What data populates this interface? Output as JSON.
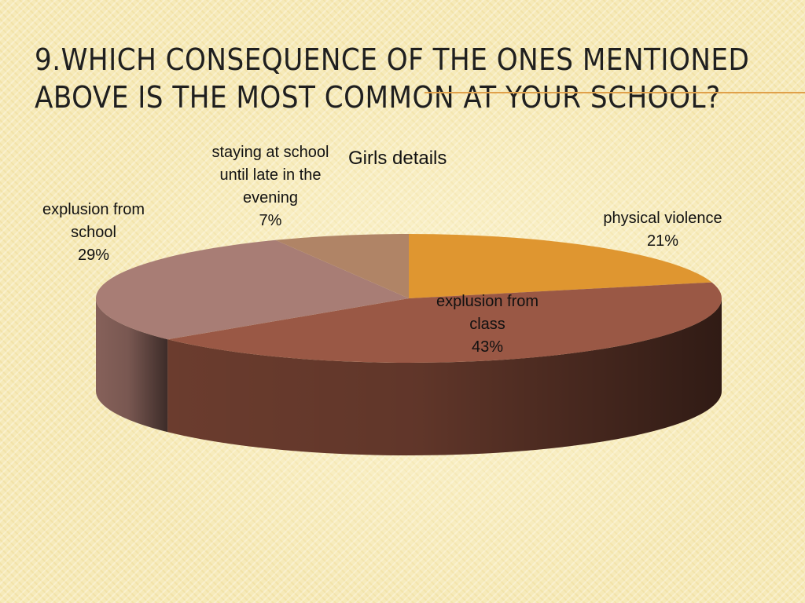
{
  "slide": {
    "title": "9.which consequence of the ones mentioned above is the most common at your school?"
  },
  "chart_data": {
    "type": "pie",
    "title": "Girls details",
    "three_d": true,
    "start_angle_deg": 0,
    "slices": [
      {
        "label_lines": [
          "physical violence"
        ],
        "value": 21,
        "value_label": "21%",
        "color": "#df9630",
        "side_color": "#a3661c"
      },
      {
        "label_lines": [
          "explusion from",
          "class"
        ],
        "value": 43,
        "value_label": "43%",
        "color": "#9a5845",
        "side_color": "#6b3c2e"
      },
      {
        "label_lines": [
          "explusion from",
          "school"
        ],
        "value": 29,
        "value_label": "29%",
        "color": "#a87d75",
        "side_color": "#86615a"
      },
      {
        "label_lines": [
          "staying at school",
          "until late in the",
          "evening"
        ],
        "value": 7,
        "value_label": "7%",
        "color": "#b08466",
        "side_color": "#8a6248"
      }
    ]
  }
}
